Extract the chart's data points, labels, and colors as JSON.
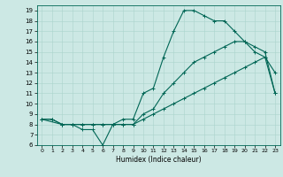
{
  "title": "",
  "xlabel": "Humidex (Indice chaleur)",
  "ylabel": "",
  "bg_color": "#cce8e4",
  "line_color": "#006655",
  "grid_color": "#aad4cc",
  "xlim": [
    -0.5,
    23.5
  ],
  "ylim": [
    6,
    19.5
  ],
  "xticks": [
    0,
    1,
    2,
    3,
    4,
    5,
    6,
    7,
    8,
    9,
    10,
    11,
    12,
    13,
    14,
    15,
    16,
    17,
    18,
    19,
    20,
    21,
    22,
    23
  ],
  "yticks": [
    6,
    7,
    8,
    9,
    10,
    11,
    12,
    13,
    14,
    15,
    16,
    17,
    18,
    19
  ],
  "line1_x": [
    0,
    1,
    2,
    3,
    4,
    5,
    6,
    7,
    8,
    9,
    10,
    11,
    12,
    13,
    14,
    15,
    16,
    17,
    18,
    19,
    20,
    21,
    22,
    23
  ],
  "line1_y": [
    8.5,
    8.5,
    8.0,
    8.0,
    7.5,
    7.5,
    6.0,
    8.0,
    8.5,
    8.5,
    11.0,
    11.5,
    14.5,
    17.0,
    19.0,
    19.0,
    18.5,
    18.0,
    18.0,
    17.0,
    16.0,
    15.0,
    14.5,
    13.0
  ],
  "line2_x": [
    0,
    1,
    2,
    3,
    4,
    5,
    6,
    7,
    8,
    9,
    10,
    11,
    12,
    13,
    14,
    15,
    16,
    17,
    18,
    19,
    20,
    21,
    22,
    23
  ],
  "line2_y": [
    8.5,
    8.5,
    8.0,
    8.0,
    8.0,
    8.0,
    8.0,
    8.0,
    8.0,
    8.0,
    9.0,
    9.5,
    11.0,
    12.0,
    13.0,
    14.0,
    14.5,
    15.0,
    15.5,
    16.0,
    16.0,
    15.5,
    15.0,
    11.0
  ],
  "line3_x": [
    0,
    2,
    3,
    4,
    5,
    6,
    7,
    8,
    9,
    10,
    11,
    12,
    13,
    14,
    15,
    16,
    17,
    18,
    19,
    20,
    21,
    22,
    23
  ],
  "line3_y": [
    8.5,
    8.0,
    8.0,
    8.0,
    8.0,
    8.0,
    8.0,
    8.0,
    8.0,
    8.5,
    9.0,
    9.5,
    10.0,
    10.5,
    11.0,
    11.5,
    12.0,
    12.5,
    13.0,
    13.5,
    14.0,
    14.5,
    11.0
  ],
  "marker": "+",
  "markersize": 3,
  "linewidth": 0.8
}
